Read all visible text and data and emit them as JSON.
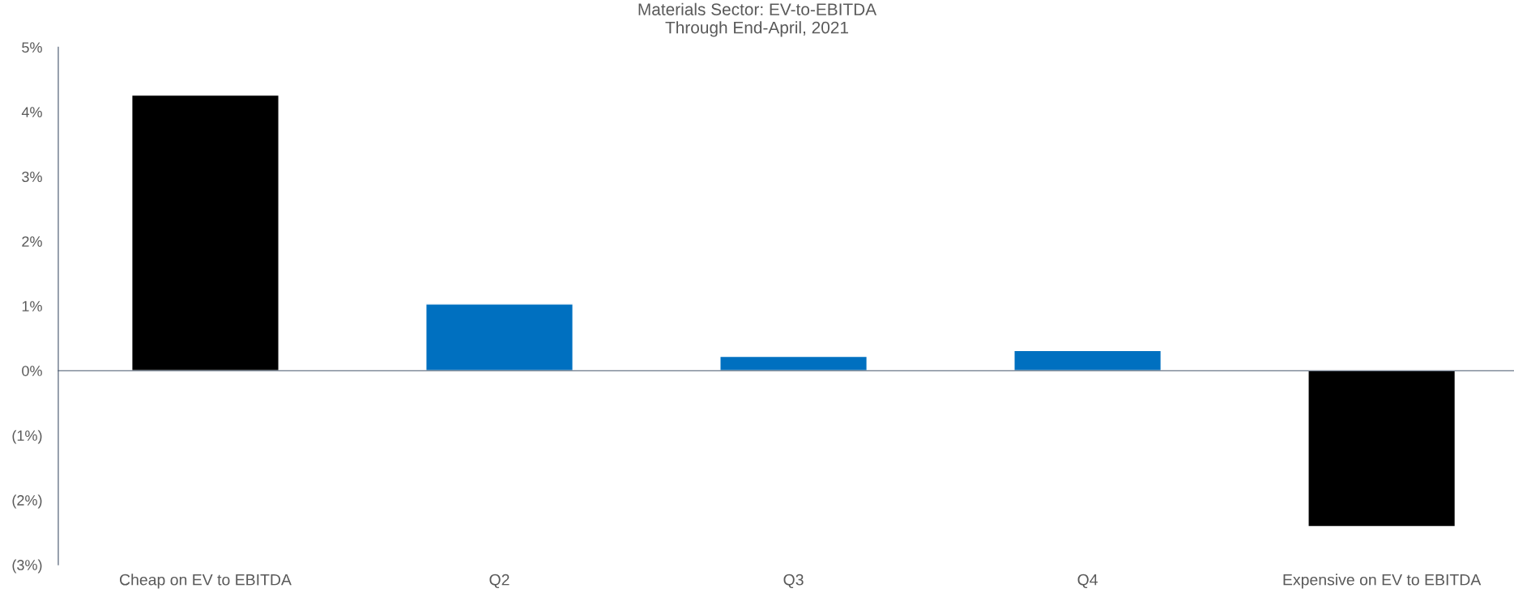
{
  "chart_data": {
    "type": "bar",
    "title": "Materials Sector: EV-to-EBITDA\nThrough End-April, 2021",
    "categories": [
      "Cheap on EV to EBITDA",
      "Q2",
      "Q3",
      "Q4",
      "Expensive on EV to EBITDA"
    ],
    "values": [
      4.26,
      1.03,
      0.22,
      0.31,
      -2.41
    ],
    "colors": [
      "#000000",
      "#0070c0",
      "#0070c0",
      "#0070c0",
      "#000000"
    ],
    "ylim": [
      -3,
      5
    ],
    "yticks": [
      {
        "value": -3,
        "label": "(3%)"
      },
      {
        "value": -2,
        "label": "(2%)"
      },
      {
        "value": -1,
        "label": "(1%)"
      },
      {
        "value": 0,
        "label": "0%"
      },
      {
        "value": 1,
        "label": "1%"
      },
      {
        "value": 2,
        "label": "2%"
      },
      {
        "value": 3,
        "label": "3%"
      },
      {
        "value": 4,
        "label": "4%"
      },
      {
        "value": 5,
        "label": "5%"
      }
    ],
    "legend": false
  }
}
